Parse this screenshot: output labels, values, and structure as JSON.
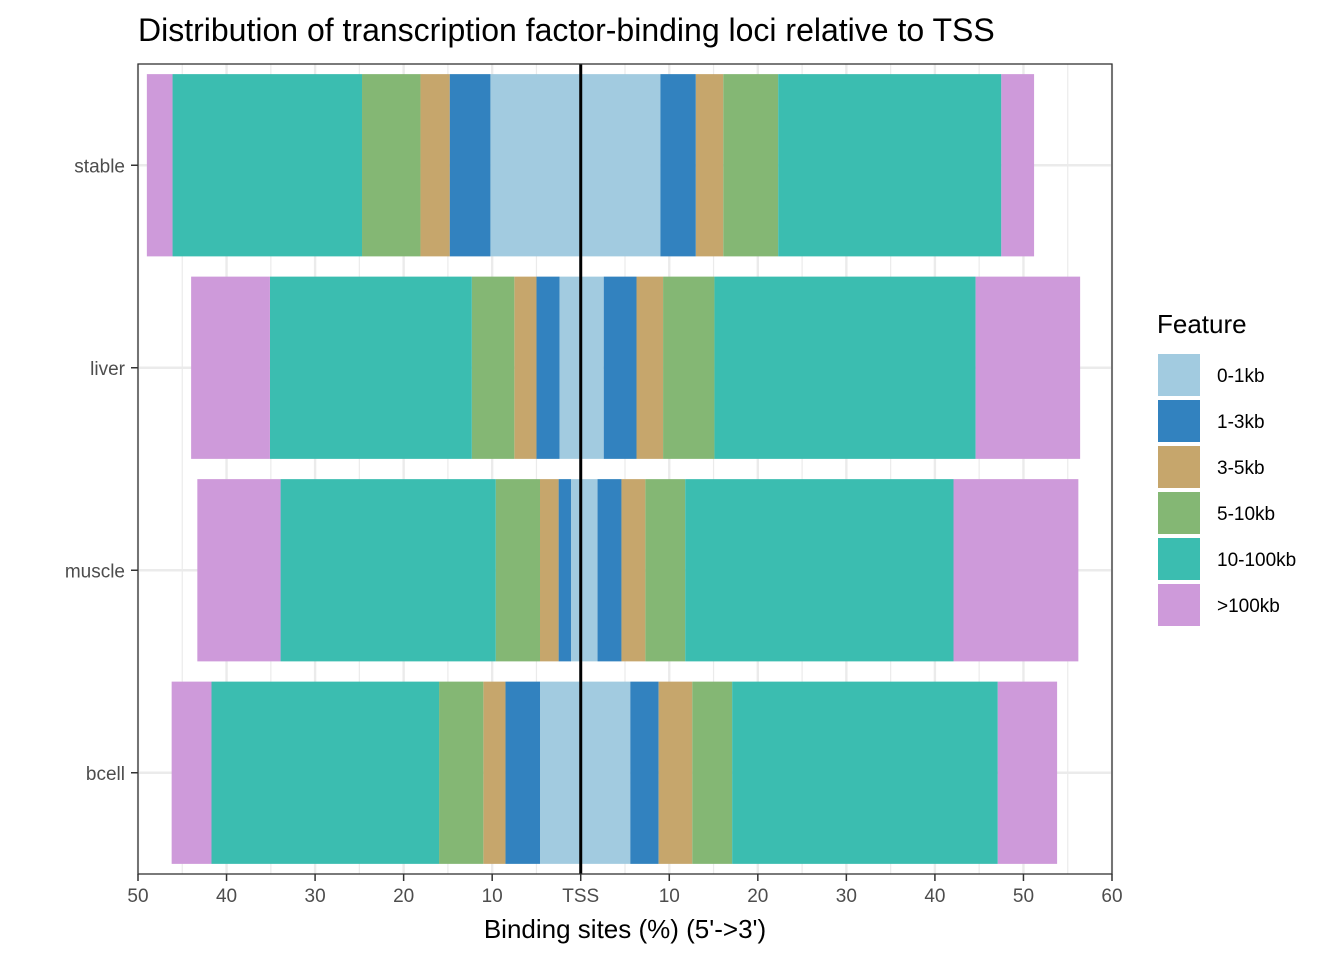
{
  "chart_data": {
    "type": "bar",
    "orientation": "horizontal-diverging",
    "title": "Distribution of transcription factor-binding loci relative to TSS",
    "xlabel": "Binding sites (%) (5'->3')",
    "ylabel": "",
    "xlim": [
      -50,
      60
    ],
    "x_ticks": [
      -50,
      -40,
      -30,
      -20,
      -10,
      0,
      10,
      20,
      30,
      40,
      50,
      60
    ],
    "x_tick_labels": [
      "50",
      "40",
      "30",
      "20",
      "10",
      "TSS",
      "10",
      "20",
      "30",
      "40",
      "50",
      "60"
    ],
    "categories": [
      "stable",
      "liver",
      "muscle",
      "bcell"
    ],
    "legend": {
      "title": "Feature",
      "placement": "right",
      "entries": [
        "0-1kb",
        "1-3kb",
        "3-5kb",
        "5-10kb",
        "10-100kb",
        ">100kb"
      ]
    },
    "series": [
      {
        "name": "0-1kb",
        "color": "#A2CBE0",
        "upstream": [
          10.2,
          2.4,
          1.1,
          4.6
        ],
        "downstream": [
          9.0,
          2.6,
          1.9,
          5.6
        ]
      },
      {
        "name": "1-3kb",
        "color": "#3282BF",
        "upstream": [
          4.6,
          2.6,
          1.4,
          3.9
        ],
        "downstream": [
          4.0,
          3.7,
          2.7,
          3.2
        ]
      },
      {
        "name": "3-5kb",
        "color": "#C6A66C",
        "upstream": [
          3.3,
          2.5,
          2.1,
          2.5
        ],
        "downstream": [
          3.1,
          3.0,
          2.7,
          3.8
        ]
      },
      {
        "name": "5-10kb",
        "color": "#84B774",
        "upstream": [
          6.6,
          4.8,
          5.0,
          5.0
        ],
        "downstream": [
          6.2,
          5.8,
          4.5,
          4.5
        ]
      },
      {
        "name": "10-100kb",
        "color": "#3BBDB0",
        "upstream": [
          21.4,
          22.8,
          24.3,
          25.7
        ],
        "downstream": [
          25.2,
          29.5,
          30.3,
          30.0
        ]
      },
      {
        "name": ">100kb",
        "color": "#CE9ADA",
        "upstream": [
          2.9,
          8.9,
          9.4,
          4.5
        ],
        "downstream": [
          3.7,
          11.8,
          14.1,
          6.7
        ]
      }
    ]
  }
}
